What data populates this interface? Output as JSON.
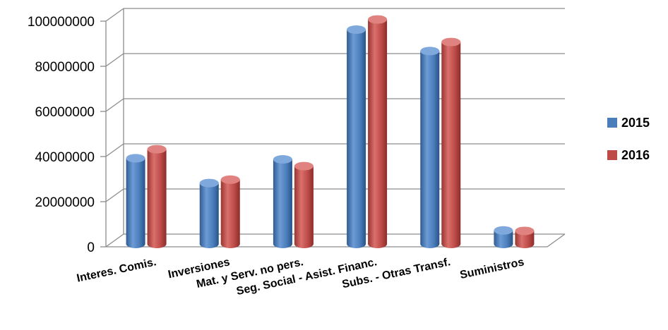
{
  "chart_data": {
    "type": "bar",
    "categories": [
      "Interes. Comis.",
      "Inversiones",
      "Mat. y Serv. no pers.",
      "Seg. Social - Asist. Financ.",
      "Subs. - Otras Transf.",
      "Suministros"
    ],
    "series": [
      {
        "name": "2015",
        "color": "#4A7EBB",
        "values": [
          38000000,
          27000000,
          37500000,
          95000000,
          85500000,
          6000000
        ]
      },
      {
        "name": "2016",
        "color": "#BE4B48",
        "values": [
          42000000,
          28500000,
          34500000,
          99500000,
          89500000,
          5800000
        ]
      }
    ],
    "yticks": [
      "0",
      "20000000",
      "40000000",
      "60000000",
      "80000000",
      "100000000"
    ],
    "ylim": [
      0,
      100000000
    ],
    "grid": true,
    "legend_position": "right",
    "style": "3d-cylinder"
  }
}
